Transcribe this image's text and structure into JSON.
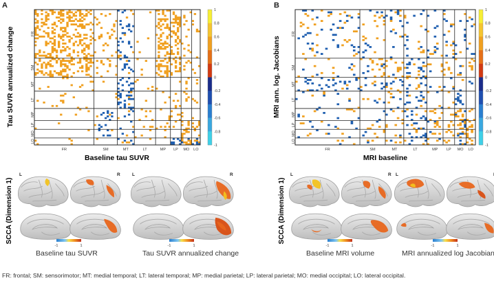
{
  "panel_a": {
    "letter": "A",
    "ylabel": "Tau SUVR annualized change",
    "xlabel": "Baseline tau SUVR",
    "row_labels": [
      "FR",
      "SM",
      "MT",
      "LT",
      "MP",
      "LP",
      "MO",
      "LO"
    ],
    "col_labels": [
      "FR",
      "SM",
      "MT",
      "LT",
      "MP",
      "LP",
      "MO",
      "LO"
    ],
    "colorbar_ticks": [
      "1",
      "0.8",
      "0.6",
      "0.4",
      "0.2",
      "0",
      "-0.2",
      "-0.4",
      "-0.6",
      "-0.8",
      "-1"
    ]
  },
  "panel_b": {
    "letter": "B",
    "ylabel": "MRI ann. log. Jacobians",
    "xlabel": "MRI baseline",
    "row_labels": [
      "FR",
      "SM",
      "MT",
      "LT",
      "MP",
      "LP",
      "MO",
      "LO"
    ],
    "col_labels": [
      "FR",
      "SM",
      "MT",
      "LT",
      "MP",
      "LP",
      "MO",
      "LO"
    ],
    "colorbar_ticks": [
      "1",
      "0.8",
      "0.6",
      "0.4",
      "0.2",
      "0",
      "-0.2",
      "-0.4",
      "-0.6",
      "-0.8",
      "-1"
    ]
  },
  "brain_left": {
    "ylabel": "SCCA (Dimension 1)",
    "hemi_l": "L",
    "hemi_r": "R",
    "scale_min": "-1",
    "scale_max": "1",
    "captions": [
      "Baseline tau SUVR",
      "Tau SUVR annualized change"
    ]
  },
  "brain_right": {
    "ylabel": "SCCA (Dimension 1)",
    "hemi_l": "L",
    "hemi_r": "R",
    "scale_min": "-1",
    "scale_max": "1",
    "captions": [
      "Baseline MRI volume",
      "MRI annualized log Jacobians"
    ]
  },
  "footnote": "FR: frontal; SM: sensorimotor; MT: medial temporal; LT: lateral temporal; MP: medial parietal; LP: lateral parietal; MO: medial occipital; LO: lateral occipital.",
  "colors": {
    "positive": "#f0a020",
    "negative": "#1f5fb0",
    "grid": "#222222"
  }
}
